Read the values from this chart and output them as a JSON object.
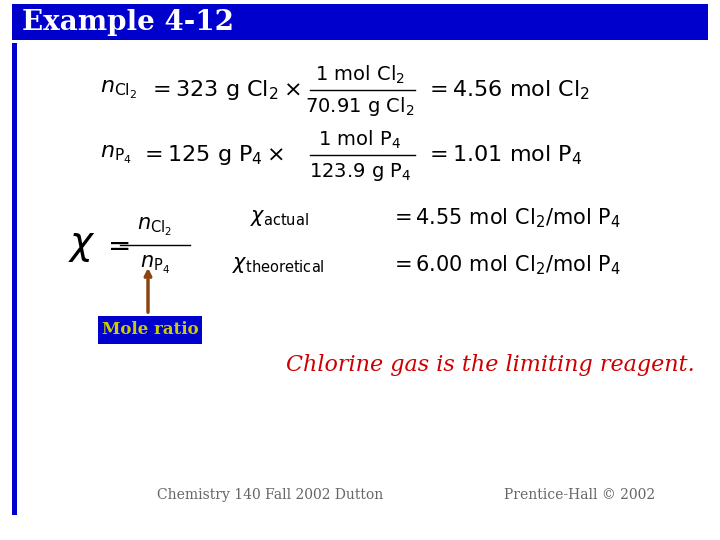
{
  "title": "Example 4-12",
  "title_bg": "#0000cc",
  "title_color": "#ffffff",
  "bg_color": "#ffffff",
  "left_bar_color": "#0000cc",
  "mole_ratio_label": "Mole ratio",
  "mole_ratio_text_color": "#cccc00",
  "mole_ratio_bg": "#0000cc",
  "arrow_color": "#8B4513",
  "limiting_text": "Chlorine gas is the limiting reagent.",
  "limiting_color": "#cc0000",
  "footer_left": "Chemistry 140 Fall 2002 Dutton",
  "footer_right": "Prentice-Hall © 2002",
  "footer_color": "#666666"
}
